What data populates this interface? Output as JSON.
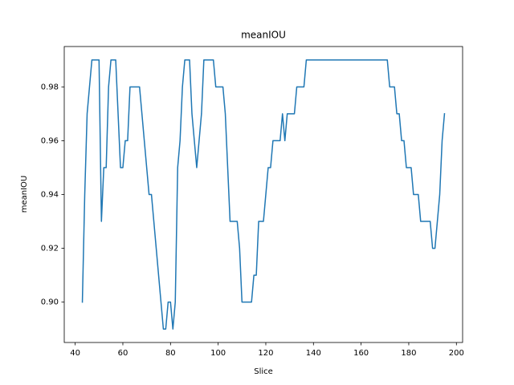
{
  "chart_data": {
    "type": "line",
    "title": "meanIOU",
    "xlabel": "Slice",
    "ylabel": "meanIOU",
    "color": "#1f77b4",
    "grid": false,
    "x": [
      43,
      44,
      45,
      46,
      47,
      48,
      49,
      50,
      51,
      52,
      53,
      54,
      55,
      56,
      57,
      58,
      59,
      60,
      61,
      62,
      63,
      64,
      65,
      66,
      67,
      68,
      69,
      70,
      71,
      72,
      73,
      74,
      75,
      76,
      77,
      78,
      79,
      80,
      81,
      82,
      83,
      84,
      85,
      86,
      87,
      88,
      89,
      90,
      91,
      92,
      93,
      94,
      95,
      96,
      97,
      98,
      99,
      100,
      101,
      102,
      103,
      104,
      105,
      106,
      107,
      108,
      109,
      110,
      111,
      112,
      113,
      114,
      115,
      116,
      117,
      118,
      119,
      120,
      121,
      122,
      123,
      124,
      125,
      126,
      127,
      128,
      129,
      130,
      131,
      132,
      133,
      134,
      135,
      136,
      137,
      138,
      139,
      140,
      141,
      142,
      143,
      144,
      145,
      146,
      147,
      148,
      149,
      150,
      151,
      152,
      153,
      154,
      155,
      156,
      157,
      158,
      159,
      160,
      161,
      162,
      163,
      164,
      165,
      166,
      167,
      168,
      169,
      170,
      171,
      172,
      173,
      174,
      175,
      176,
      177,
      178,
      179,
      180,
      181,
      182,
      183,
      184,
      185,
      186,
      187,
      188,
      189,
      190,
      191,
      192,
      193,
      194,
      195
    ],
    "values": [
      0.9,
      0.94,
      0.97,
      0.98,
      0.99,
      0.99,
      0.99,
      0.99,
      0.93,
      0.95,
      0.95,
      0.98,
      0.99,
      0.99,
      0.99,
      0.97,
      0.95,
      0.95,
      0.96,
      0.96,
      0.98,
      0.98,
      0.98,
      0.98,
      0.98,
      0.97,
      0.96,
      0.95,
      0.94,
      0.94,
      0.93,
      0.92,
      0.91,
      0.9,
      0.89,
      0.89,
      0.9,
      0.9,
      0.89,
      0.9,
      0.95,
      0.96,
      0.98,
      0.99,
      0.99,
      0.99,
      0.97,
      0.96,
      0.95,
      0.96,
      0.97,
      0.99,
      0.99,
      0.99,
      0.99,
      0.99,
      0.98,
      0.98,
      0.98,
      0.98,
      0.97,
      0.95,
      0.93,
      0.93,
      0.93,
      0.93,
      0.92,
      0.9,
      0.9,
      0.9,
      0.9,
      0.9,
      0.91,
      0.91,
      0.93,
      0.93,
      0.93,
      0.94,
      0.95,
      0.95,
      0.96,
      0.96,
      0.96,
      0.96,
      0.97,
      0.96,
      0.97,
      0.97,
      0.97,
      0.97,
      0.98,
      0.98,
      0.98,
      0.98,
      0.99,
      0.99,
      0.99,
      0.99,
      0.99,
      0.99,
      0.99,
      0.99,
      0.99,
      0.99,
      0.99,
      0.99,
      0.99,
      0.99,
      0.99,
      0.99,
      0.99,
      0.99,
      0.99,
      0.99,
      0.99,
      0.99,
      0.99,
      0.99,
      0.99,
      0.99,
      0.99,
      0.99,
      0.99,
      0.99,
      0.99,
      0.99,
      0.99,
      0.99,
      0.99,
      0.98,
      0.98,
      0.98,
      0.97,
      0.97,
      0.96,
      0.96,
      0.95,
      0.95,
      0.95,
      0.94,
      0.94,
      0.94,
      0.93,
      0.93,
      0.93,
      0.93,
      0.93,
      0.92,
      0.92,
      0.93,
      0.94,
      0.96,
      0.97
    ],
    "xlim": [
      35.4,
      202.6
    ],
    "ylim": [
      0.885,
      0.995
    ],
    "xticks": [
      40,
      60,
      80,
      100,
      120,
      140,
      160,
      180,
      200
    ],
    "yticks": [
      {
        "value": 0.9,
        "label": "0.90"
      },
      0.92,
      0.94,
      0.96,
      0.98
    ]
  }
}
